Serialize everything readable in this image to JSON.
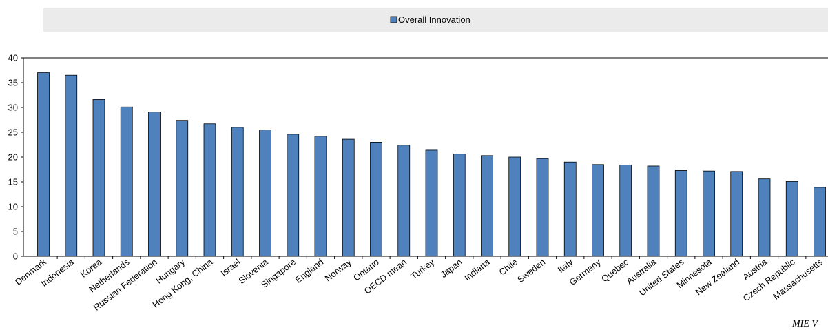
{
  "chart_data": {
    "type": "bar",
    "categories": [
      "Denmark",
      "Indonesia",
      "Korea",
      "Netherlands",
      "Russian Federation",
      "Hungary",
      "Hong Kong, China",
      "Israel",
      "Slovenia",
      "Singapore",
      "England",
      "Norway",
      "Ontario",
      "OECD mean",
      "Turkey",
      "Japan",
      "Indiana",
      "Chile",
      "Sweden",
      "Italy",
      "Germany",
      "Quebec",
      "Australia",
      "United States",
      "Minnesota",
      "New Zealand",
      "Austria",
      "Czech Republic",
      "Massachusetts"
    ],
    "series": [
      {
        "name": "Overall Innovation",
        "values": [
          37.0,
          36.5,
          31.6,
          30.1,
          29.1,
          27.4,
          26.7,
          26.0,
          25.5,
          24.6,
          24.2,
          23.6,
          23.0,
          22.4,
          21.4,
          20.6,
          20.3,
          20.0,
          19.7,
          19.0,
          18.5,
          18.4,
          18.2,
          17.3,
          17.2,
          17.1,
          15.6,
          15.1,
          13.9
        ],
        "color": "#4f81bd"
      }
    ],
    "y_ticks": [
      "0",
      "5",
      "10",
      "15",
      "20",
      "25",
      "30",
      "35",
      "40"
    ],
    "ylim": [
      0,
      40
    ],
    "legend_position": "top",
    "grid": false,
    "title": "",
    "xlabel": "",
    "ylabel": ""
  },
  "footer_text": "MIE V",
  "colors": {
    "legend_band": "#ebebeb",
    "bar_fill": "#4f81bd",
    "bar_stroke": "#000000"
  }
}
